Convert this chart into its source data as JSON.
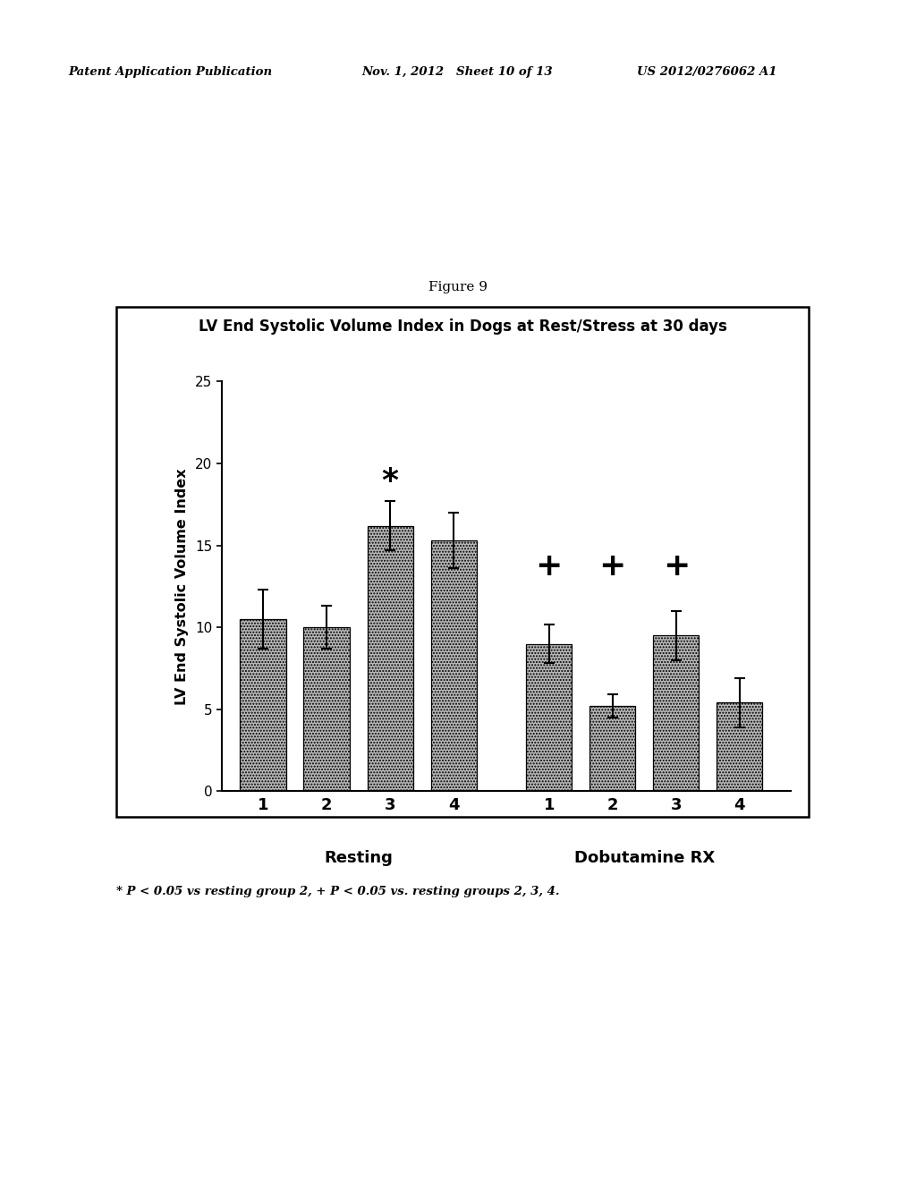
{
  "title": "LV End Systolic Volume Index in Dogs at Rest/Stress at 30 days",
  "ylabel": "LV End Systolic Volume Index",
  "figure_label": "Figure 9",
  "header_left": "Patent Application Publication",
  "header_mid": "Nov. 1, 2012   Sheet 10 of 13",
  "header_right": "US 2012/0276062 A1",
  "footer": "* P < 0.05 vs resting group 2, + P < 0.05 vs. resting groups 2, 3, 4.",
  "resting_label": "Resting",
  "dobutamine_label": "Dobutamine RX",
  "bar_values": [
    10.5,
    10.0,
    16.2,
    15.3,
    9.0,
    5.2,
    9.5,
    5.4
  ],
  "bar_errors": [
    1.8,
    1.3,
    1.5,
    1.7,
    1.2,
    0.7,
    1.5,
    1.5
  ],
  "bar_labels": [
    "1",
    "2",
    "3",
    "4",
    "1",
    "2",
    "3",
    "4"
  ],
  "bar_color": "#b8b8b8",
  "ylim": [
    0,
    25
  ],
  "yticks": [
    0,
    5,
    10,
    15,
    20,
    25
  ],
  "star_symbol": "*",
  "plus_symbol": "+",
  "background_color": "#ffffff"
}
